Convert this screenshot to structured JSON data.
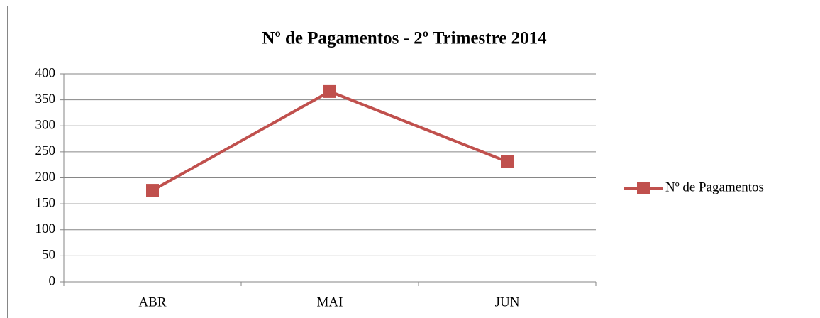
{
  "chart_data": {
    "type": "line",
    "title": "Nº de Pagamentos - 2º Trimestre 2014",
    "categories": [
      "ABR",
      "MAI",
      "JUN"
    ],
    "series": [
      {
        "name": "Nº de Pagamentos",
        "color": "#c0504d",
        "values": [
          176,
          366,
          231
        ]
      }
    ],
    "ylim": [
      0,
      400
    ],
    "yticks": [
      0,
      50,
      100,
      150,
      200,
      250,
      300,
      350,
      400
    ],
    "grid": true,
    "legend": "right"
  }
}
